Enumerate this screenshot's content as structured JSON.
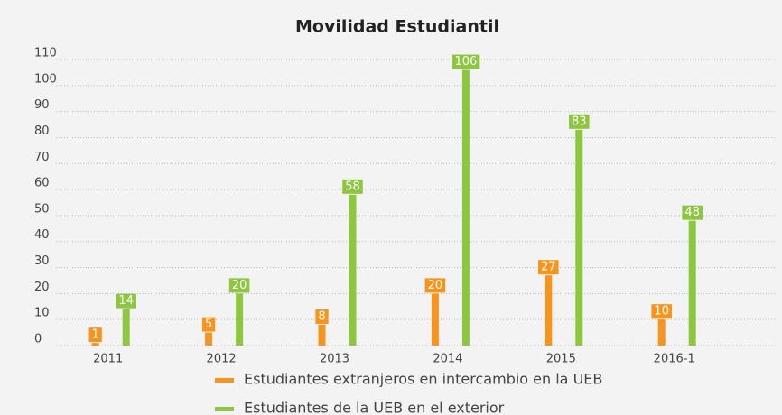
{
  "chart_data": {
    "type": "bar",
    "title": "Movilidad Estudiantil",
    "categories": [
      "2011",
      "2012",
      "2013",
      "2014",
      "2015",
      "2016-1"
    ],
    "series": [
      {
        "name": "Estudiantes extranjeros en intercambio en la UEB",
        "color": "#f7941d",
        "values": [
          1,
          5,
          8,
          20,
          27,
          10
        ]
      },
      {
        "name": "Estudiantes de la UEB en el exterior",
        "color": "#8dc63f",
        "values": [
          14,
          20,
          58,
          106,
          83,
          48
        ]
      }
    ],
    "ylim": [
      0,
      110
    ],
    "yticks": [
      0,
      10,
      20,
      30,
      40,
      50,
      60,
      70,
      80,
      90,
      100,
      110
    ],
    "grid": true
  }
}
